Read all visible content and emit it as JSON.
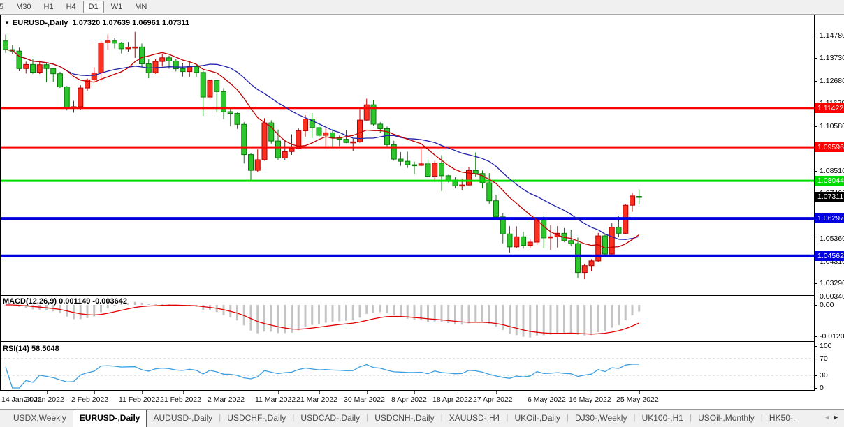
{
  "toolbar": {
    "timeframes": [
      {
        "label": "5",
        "active": false
      },
      {
        "label": "M30",
        "active": false
      },
      {
        "label": "H1",
        "active": false
      },
      {
        "label": "H4",
        "active": false
      },
      {
        "label": "D1",
        "active": true
      },
      {
        "label": "W1",
        "active": false
      },
      {
        "label": "MN",
        "active": false
      }
    ]
  },
  "chart_window": {
    "symbol_label": "EURUSD-,Daily",
    "ohlc_label": "1.07320 1.07639 1.06961 1.07311",
    "dropdown_icon": "▼"
  },
  "price_axis": {
    "ticks": [
      [
        "1.14780",
        1.1478
      ],
      [
        "1.13730",
        1.1373
      ],
      [
        "1.12680",
        1.1268
      ],
      [
        "1.11630",
        1.1163
      ],
      [
        "1.10580",
        1.1058
      ],
      [
        "1.08510",
        1.0851
      ],
      [
        "1.07460",
        1.0746
      ],
      [
        "1.05360",
        1.0536
      ],
      [
        "1.04310",
        1.0431
      ],
      [
        "1.03290",
        1.0329
      ]
    ]
  },
  "hlines": [
    {
      "label": "1.11422",
      "value": 1.11422,
      "color": "#fe0000",
      "width": 3
    },
    {
      "label": "1.09596",
      "value": 1.09596,
      "color": "#fe0000",
      "width": 3
    },
    {
      "label": "1.08044",
      "value": 1.08044,
      "color": "#00dc00",
      "width": 3
    },
    {
      "label": "1.06297",
      "value": 1.06297,
      "color": "#0000e0",
      "width": 4
    },
    {
      "label": "1.04562",
      "value": 1.04562,
      "color": "#0000e0",
      "width": 4
    }
  ],
  "current_price": {
    "label": "1.07311",
    "value": 1.07311,
    "bg": "#000000"
  },
  "chart_data": {
    "type": "candlestick",
    "title": "EURUSD-,Daily",
    "up_color": "#fb3020",
    "down_color": "#2dc62d",
    "up_stroke": "#b30000",
    "down_stroke": "#0a7a0a",
    "ma_fast": {
      "period": 10,
      "color": "#c00000"
    },
    "ma_slow": {
      "period": 20,
      "color": "#2121aa"
    },
    "ylim": [
      1.0329,
      1.1478
    ],
    "x_axis": [
      [
        "14 Jan 2022",
        0
      ],
      [
        "24 Jan 2022",
        6
      ],
      [
        "2 Feb 2022",
        13
      ],
      [
        "11 Feb 2022",
        20
      ],
      [
        "21 Feb 2022",
        26
      ],
      [
        "2 Mar 2022",
        33
      ],
      [
        "11 Mar 2022",
        40
      ],
      [
        "21 Mar 2022",
        46
      ],
      [
        "30 Mar 2022",
        53
      ],
      [
        "8 Apr 2022",
        60
      ],
      [
        "18 Apr 2022",
        66
      ],
      [
        "27 Apr 2022",
        72
      ],
      [
        "6 May 2022",
        80
      ],
      [
        "16 May 2022",
        86
      ],
      [
        "25 May 2022",
        93
      ]
    ],
    "candles_ohlc": [
      [
        1.1453,
        1.1483,
        1.1398,
        1.1413
      ],
      [
        1.1413,
        1.1435,
        1.1392,
        1.1406
      ],
      [
        1.1406,
        1.1422,
        1.1313,
        1.1325
      ],
      [
        1.1325,
        1.1357,
        1.1302,
        1.1344
      ],
      [
        1.1344,
        1.1369,
        1.1301,
        1.1308
      ],
      [
        1.1308,
        1.136,
        1.13,
        1.1343
      ],
      [
        1.1343,
        1.1349,
        1.1262,
        1.1325
      ],
      [
        1.1325,
        1.1327,
        1.1263,
        1.1301
      ],
      [
        1.1301,
        1.131,
        1.1235,
        1.124
      ],
      [
        1.124,
        1.1244,
        1.1131,
        1.1144
      ],
      [
        1.1144,
        1.1175,
        1.1121,
        1.1148
      ],
      [
        1.1148,
        1.1248,
        1.1135,
        1.1235
      ],
      [
        1.1235,
        1.1279,
        1.1222,
        1.1273
      ],
      [
        1.1273,
        1.1331,
        1.1267,
        1.1305
      ],
      [
        1.1305,
        1.1452,
        1.1266,
        1.1444
      ],
      [
        1.1444,
        1.1483,
        1.1411,
        1.1453
      ],
      [
        1.1453,
        1.1465,
        1.1418,
        1.1443
      ],
      [
        1.1443,
        1.1449,
        1.1395,
        1.1417
      ],
      [
        1.1417,
        1.1448,
        1.1403,
        1.1424
      ],
      [
        1.1424,
        1.1495,
        1.1375,
        1.1425
      ],
      [
        1.1425,
        1.1441,
        1.133,
        1.1347
      ],
      [
        1.1347,
        1.1369,
        1.128,
        1.1306
      ],
      [
        1.1306,
        1.1368,
        1.1301,
        1.1358
      ],
      [
        1.1358,
        1.1395,
        1.1334,
        1.1375
      ],
      [
        1.1375,
        1.1385,
        1.1324,
        1.136
      ],
      [
        1.136,
        1.1369,
        1.1312,
        1.1324
      ],
      [
        1.1324,
        1.1351,
        1.1288,
        1.1311
      ],
      [
        1.1311,
        1.1359,
        1.1287,
        1.1334
      ],
      [
        1.1334,
        1.1342,
        1.1287,
        1.1307
      ],
      [
        1.1307,
        1.1315,
        1.1106,
        1.1193
      ],
      [
        1.1193,
        1.1274,
        1.1184,
        1.127
      ],
      [
        1.127,
        1.1272,
        1.1121,
        1.1218
      ],
      [
        1.1218,
        1.1234,
        1.109,
        1.1125
      ],
      [
        1.1125,
        1.1139,
        1.1058,
        1.1117
      ],
      [
        1.1117,
        1.1121,
        1.1045,
        1.1066
      ],
      [
        1.1066,
        1.1076,
        1.0885,
        1.0926
      ],
      [
        1.0926,
        1.0931,
        1.0806,
        1.0853
      ],
      [
        1.0853,
        1.095,
        1.0845,
        1.0902
      ],
      [
        1.0902,
        1.1095,
        1.0898,
        1.1073
      ],
      [
        1.1073,
        1.1085,
        1.0977,
        1.0989
      ],
      [
        1.0989,
        1.1042,
        1.09,
        1.0911
      ],
      [
        1.0911,
        1.0992,
        1.0902,
        1.094
      ],
      [
        1.094,
        1.102,
        1.0925,
        1.0955
      ],
      [
        1.0955,
        1.1047,
        1.095,
        1.1036
      ],
      [
        1.1036,
        1.1109,
        1.1009,
        1.1091
      ],
      [
        1.1091,
        1.1119,
        1.1003,
        1.1051
      ],
      [
        1.1051,
        1.1069,
        1.1008,
        1.1015
      ],
      [
        1.1015,
        1.1046,
        1.0962,
        1.1027
      ],
      [
        1.1027,
        1.1044,
        1.0963,
        1.1005
      ],
      [
        1.1005,
        1.1014,
        1.0966,
        1.0997
      ],
      [
        1.0997,
        1.1039,
        1.0979,
        1.0982
      ],
      [
        1.0982,
        1.1,
        1.0944,
        1.0985
      ],
      [
        1.0985,
        1.1137,
        1.0981,
        1.1086
      ],
      [
        1.1086,
        1.1185,
        1.1083,
        1.1157
      ],
      [
        1.1157,
        1.1177,
        1.106,
        1.1067
      ],
      [
        1.1067,
        1.1076,
        1.1027,
        1.1046
      ],
      [
        1.1046,
        1.1056,
        1.096,
        1.0972
      ],
      [
        1.0972,
        1.099,
        1.0898,
        1.0905
      ],
      [
        1.0905,
        1.0937,
        1.0874,
        1.0895
      ],
      [
        1.0895,
        1.0939,
        1.0864,
        1.0879
      ],
      [
        1.0879,
        1.0894,
        1.0836,
        1.0876
      ],
      [
        1.0876,
        1.095,
        1.0872,
        1.0883
      ],
      [
        1.0883,
        1.0904,
        1.0821,
        1.0826
      ],
      [
        1.0826,
        1.0897,
        1.0809,
        1.0886
      ],
      [
        1.0886,
        1.0923,
        1.0757,
        1.0828
      ],
      [
        1.0828,
        1.0832,
        1.0797,
        1.0808
      ],
      [
        1.0808,
        1.0821,
        1.0769,
        1.0781
      ],
      [
        1.0781,
        1.0815,
        1.0761,
        1.0785
      ],
      [
        1.0785,
        1.0867,
        1.0783,
        1.0852
      ],
      [
        1.0852,
        1.0936,
        1.0824,
        1.0838
      ],
      [
        1.0838,
        1.0852,
        1.077,
        1.0795
      ],
      [
        1.0795,
        1.084,
        1.0697,
        1.0712
      ],
      [
        1.0712,
        1.0738,
        1.0634,
        1.0637
      ],
      [
        1.0637,
        1.0655,
        1.0514,
        1.0558
      ],
      [
        1.0558,
        1.0594,
        1.0471,
        1.0498
      ],
      [
        1.0498,
        1.0593,
        1.0492,
        1.0545
      ],
      [
        1.0545,
        1.0568,
        1.049,
        1.0505
      ],
      [
        1.0505,
        1.0533,
        1.0493,
        1.052
      ],
      [
        1.052,
        1.063,
        1.0507,
        1.0622
      ],
      [
        1.0622,
        1.0642,
        1.0492,
        1.054
      ],
      [
        1.054,
        1.0599,
        1.0483,
        1.0545
      ],
      [
        1.0545,
        1.0594,
        1.0495,
        1.0561
      ],
      [
        1.0561,
        1.0585,
        1.0521,
        1.0527
      ],
      [
        1.0527,
        1.0578,
        1.0501,
        1.0513
      ],
      [
        1.0513,
        1.0541,
        1.0354,
        1.0379
      ],
      [
        1.0379,
        1.042,
        1.0348,
        1.0411
      ],
      [
        1.0411,
        1.0441,
        1.0384,
        1.0433
      ],
      [
        1.0433,
        1.0563,
        1.0427,
        1.0549
      ],
      [
        1.0549,
        1.0556,
        1.0459,
        1.0465
      ],
      [
        1.0465,
        1.0607,
        1.0462,
        1.0589
      ],
      [
        1.0589,
        1.0639,
        1.0543,
        1.0561
      ],
      [
        1.0561,
        1.0697,
        1.0556,
        1.0691
      ],
      [
        1.0691,
        1.0748,
        1.0661,
        1.0734
      ],
      [
        1.0732,
        1.0764,
        1.0696,
        1.0731
      ]
    ],
    "indicators": [
      {
        "name": "MACD",
        "label": "MACD(12,26,9) 0.001149 -0.003642",
        "params": [
          12,
          26,
          9
        ],
        "current_values": [
          0.001149,
          -0.003642
        ],
        "axis_ticks": [
          [
            "0.003408",
            0.003408
          ],
          [
            "0.00",
            0
          ],
          [
            "-0.012058",
            -0.012058
          ]
        ],
        "histogram_color": "#c4c4c4",
        "signal_color": "#e00000"
      },
      {
        "name": "RSI",
        "label": "RSI(14) 58.5048",
        "params": [
          14
        ],
        "current_values": [
          58.5048
        ],
        "axis_ticks": [
          [
            "100",
            100
          ],
          [
            "70",
            70
          ],
          [
            "30",
            30
          ],
          [
            "0",
            0
          ]
        ],
        "line_color": "#3d9fe0",
        "level_color": "#c9c9c9",
        "levels": [
          70,
          30
        ]
      }
    ]
  },
  "tabbar": {
    "tabs": [
      {
        "label": "USDX,Weekly",
        "active": false
      },
      {
        "label": "EURUSD-,Daily",
        "active": true
      },
      {
        "label": "AUDUSD-,Daily",
        "active": false
      },
      {
        "label": "USDCHF-,Daily",
        "active": false
      },
      {
        "label": "USDCAD-,Daily",
        "active": false
      },
      {
        "label": "USDCNH-,Daily",
        "active": false
      },
      {
        "label": "XAUUSD-,H4",
        "active": false
      },
      {
        "label": "UKOil-,Daily",
        "active": false
      },
      {
        "label": "DJ30-,Weekly",
        "active": false
      },
      {
        "label": "UK100-,H1",
        "active": false
      },
      {
        "label": "USOil-,Monthly",
        "active": false
      },
      {
        "label": "HK50-,",
        "active": false
      }
    ],
    "scroll_left_icon": "◄",
    "scroll_right_icon": "►"
  }
}
